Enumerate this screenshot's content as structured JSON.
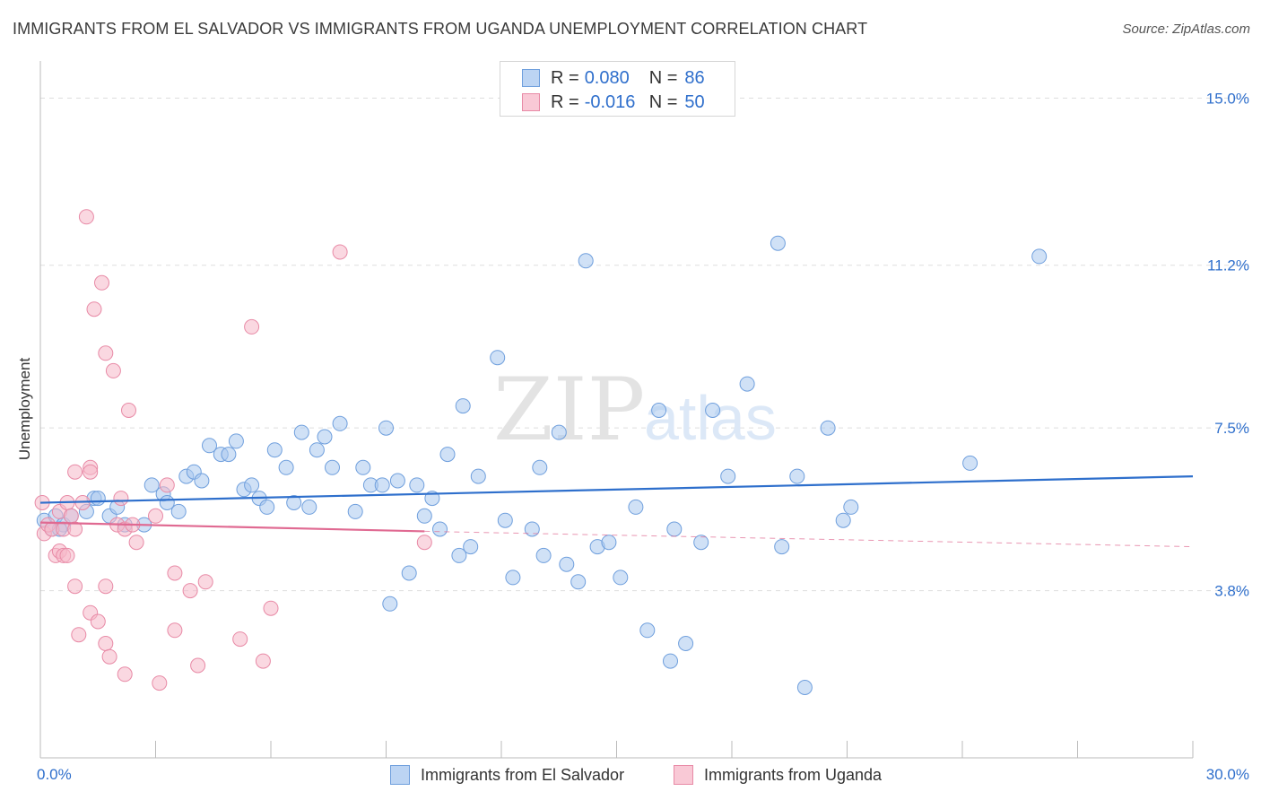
{
  "title": "IMMIGRANTS FROM EL SALVADOR VS IMMIGRANTS FROM UGANDA UNEMPLOYMENT CORRELATION CHART",
  "source": "Source: ZipAtlas.com",
  "watermark": {
    "zip": "ZIP",
    "atlas": "atlas"
  },
  "colors": {
    "blue_fill": "#a9c8ef",
    "blue_stroke": "#6f9fdd",
    "blue_line": "#2e6fcc",
    "pink_fill": "#f5b8c9",
    "pink_stroke": "#e88aa6",
    "pink_line": "#e06a92",
    "grid": "#dddddd",
    "tick_label": "#2f6fcc"
  },
  "legend": {
    "rows": [
      {
        "r_label": "R =",
        "r_value": "0.080",
        "n_label": "N =",
        "n_value": "86"
      },
      {
        "r_label": "R =",
        "r_value": "-0.016",
        "n_label": "N =",
        "n_value": "50"
      }
    ]
  },
  "chart_data": {
    "type": "scatter",
    "title": "IMMIGRANTS FROM EL SALVADOR VS IMMIGRANTS FROM UGANDA UNEMPLOYMENT CORRELATION CHART",
    "xlabel": "",
    "ylabel": "Unemployment",
    "xlim": [
      0,
      30
    ],
    "ylim": [
      0,
      15.7
    ],
    "x_tick_labels": [
      {
        "value": 0,
        "label": "0.0%"
      },
      {
        "value": 30,
        "label": "30.0%"
      }
    ],
    "y_ticks": [
      {
        "value": 3.8,
        "label": "3.8%"
      },
      {
        "value": 7.5,
        "label": "7.5%"
      },
      {
        "value": 11.2,
        "label": "11.2%"
      },
      {
        "value": 15.0,
        "label": "15.0%"
      }
    ],
    "grid": true,
    "legend_position": "top-center",
    "series": [
      {
        "name": "Immigrants from El Salvador",
        "color": "#a9c8ef",
        "trend": {
          "x": [
            0,
            30
          ],
          "y": [
            5.8,
            6.4
          ],
          "style": "solid"
        },
        "points": [
          [
            0.1,
            5.4
          ],
          [
            0.3,
            5.2
          ],
          [
            0.4,
            5.5
          ],
          [
            0.6,
            5.3
          ],
          [
            0.8,
            5.5
          ],
          [
            1.2,
            5.6
          ],
          [
            1.4,
            5.9
          ],
          [
            1.8,
            5.5
          ],
          [
            2.0,
            5.7
          ],
          [
            2.2,
            5.3
          ],
          [
            2.7,
            5.3
          ],
          [
            2.9,
            6.2
          ],
          [
            3.2,
            6.0
          ],
          [
            3.3,
            5.8
          ],
          [
            3.6,
            5.6
          ],
          [
            3.8,
            6.4
          ],
          [
            4.0,
            6.5
          ],
          [
            4.2,
            6.3
          ],
          [
            4.4,
            7.1
          ],
          [
            4.7,
            6.9
          ],
          [
            4.9,
            6.9
          ],
          [
            5.1,
            7.2
          ],
          [
            5.3,
            6.1
          ],
          [
            5.5,
            6.2
          ],
          [
            5.7,
            5.9
          ],
          [
            5.9,
            5.7
          ],
          [
            6.1,
            7.0
          ],
          [
            6.4,
            6.6
          ],
          [
            6.6,
            5.8
          ],
          [
            6.8,
            7.4
          ],
          [
            7.0,
            5.7
          ],
          [
            7.2,
            7.0
          ],
          [
            7.4,
            7.3
          ],
          [
            7.6,
            6.6
          ],
          [
            7.8,
            7.6
          ],
          [
            8.2,
            5.6
          ],
          [
            8.4,
            6.6
          ],
          [
            8.6,
            6.2
          ],
          [
            8.9,
            6.2
          ],
          [
            9.0,
            7.5
          ],
          [
            9.1,
            3.5
          ],
          [
            9.3,
            6.3
          ],
          [
            9.6,
            4.2
          ],
          [
            9.8,
            6.2
          ],
          [
            10.0,
            5.5
          ],
          [
            10.2,
            5.9
          ],
          [
            10.4,
            5.2
          ],
          [
            10.6,
            6.9
          ],
          [
            10.9,
            4.6
          ],
          [
            11.0,
            8.0
          ],
          [
            11.2,
            4.8
          ],
          [
            11.4,
            6.4
          ],
          [
            11.9,
            9.1
          ],
          [
            12.1,
            5.4
          ],
          [
            12.3,
            4.1
          ],
          [
            12.8,
            5.2
          ],
          [
            13.0,
            6.6
          ],
          [
            13.1,
            4.6
          ],
          [
            13.5,
            7.4
          ],
          [
            13.7,
            4.4
          ],
          [
            14.0,
            4.0
          ],
          [
            14.2,
            11.3
          ],
          [
            14.5,
            4.8
          ],
          [
            14.8,
            4.9
          ],
          [
            15.1,
            4.1
          ],
          [
            15.5,
            5.7
          ],
          [
            15.8,
            2.9
          ],
          [
            16.1,
            7.9
          ],
          [
            16.4,
            2.2
          ],
          [
            16.5,
            5.2
          ],
          [
            16.8,
            2.6
          ],
          [
            17.2,
            4.9
          ],
          [
            17.5,
            7.9
          ],
          [
            17.9,
            6.4
          ],
          [
            18.4,
            8.5
          ],
          [
            19.2,
            11.7
          ],
          [
            19.3,
            4.8
          ],
          [
            19.7,
            6.4
          ],
          [
            19.9,
            1.6
          ],
          [
            20.5,
            7.5
          ],
          [
            20.9,
            5.4
          ],
          [
            21.1,
            5.7
          ],
          [
            24.2,
            6.7
          ],
          [
            26.0,
            11.4
          ],
          [
            0.5,
            5.2
          ],
          [
            1.5,
            5.9
          ]
        ]
      },
      {
        "name": "Immigrants from Uganda",
        "color": "#f5b8c9",
        "trend": {
          "x": [
            0,
            10
          ],
          "y": [
            5.35,
            5.15
          ],
          "style": "solid",
          "extension_x": [
            10,
            30
          ],
          "extension_y": [
            5.15,
            4.8
          ],
          "extension_style": "dashed"
        },
        "points": [
          [
            0.05,
            5.8
          ],
          [
            0.1,
            5.1
          ],
          [
            0.2,
            5.3
          ],
          [
            0.3,
            5.2
          ],
          [
            0.4,
            4.6
          ],
          [
            0.5,
            4.7
          ],
          [
            0.5,
            5.6
          ],
          [
            0.6,
            4.6
          ],
          [
            0.6,
            5.2
          ],
          [
            0.7,
            4.6
          ],
          [
            0.7,
            5.8
          ],
          [
            0.8,
            5.5
          ],
          [
            0.9,
            6.5
          ],
          [
            0.9,
            3.9
          ],
          [
            0.9,
            5.2
          ],
          [
            1.0,
            2.8
          ],
          [
            1.1,
            5.8
          ],
          [
            1.2,
            12.3
          ],
          [
            1.3,
            3.3
          ],
          [
            1.3,
            6.6
          ],
          [
            1.3,
            6.5
          ],
          [
            1.4,
            10.2
          ],
          [
            1.5,
            3.1
          ],
          [
            1.6,
            10.8
          ],
          [
            1.7,
            9.2
          ],
          [
            1.7,
            2.6
          ],
          [
            1.7,
            3.9
          ],
          [
            1.8,
            2.3
          ],
          [
            1.9,
            8.8
          ],
          [
            2.0,
            5.3
          ],
          [
            2.1,
            5.9
          ],
          [
            2.2,
            5.2
          ],
          [
            2.2,
            1.9
          ],
          [
            2.3,
            7.9
          ],
          [
            2.4,
            5.3
          ],
          [
            2.5,
            4.9
          ],
          [
            3.0,
            5.5
          ],
          [
            3.1,
            1.7
          ],
          [
            3.3,
            6.2
          ],
          [
            3.5,
            4.2
          ],
          [
            3.5,
            2.9
          ],
          [
            3.9,
            3.8
          ],
          [
            4.1,
            2.1
          ],
          [
            4.3,
            4.0
          ],
          [
            5.2,
            2.7
          ],
          [
            5.5,
            9.8
          ],
          [
            5.8,
            2.2
          ],
          [
            6.0,
            3.4
          ],
          [
            7.8,
            11.5
          ],
          [
            10.0,
            4.9
          ]
        ]
      }
    ]
  }
}
